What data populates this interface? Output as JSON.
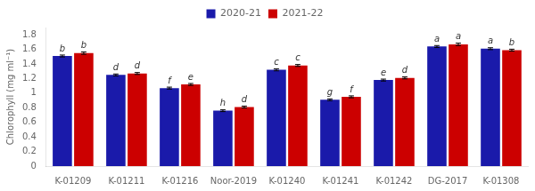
{
  "chart_data": {
    "type": "bar",
    "categories": [
      "K-01209",
      "K-01211",
      "K-01216",
      "Noor-2019",
      "K-01240",
      "K-01241",
      "K-01242",
      "DG-2017",
      "K-01308"
    ],
    "series": [
      {
        "name": "2020-21",
        "color": "#1a1aaa",
        "values": [
          1.51,
          1.25,
          1.07,
          0.76,
          1.32,
          0.91,
          1.18,
          1.64,
          1.61
        ],
        "errors": [
          0.013,
          0.013,
          0.013,
          0.012,
          0.013,
          0.012,
          0.013,
          0.013,
          0.013
        ],
        "annotations": [
          "b",
          "d",
          "f",
          "h",
          "c",
          "g",
          "e",
          "a",
          "a"
        ]
      },
      {
        "name": "2021-22",
        "color": "#cc0000",
        "values": [
          1.55,
          1.27,
          1.12,
          0.81,
          1.38,
          0.95,
          1.21,
          1.67,
          1.59
        ],
        "errors": [
          0.016,
          0.013,
          0.013,
          0.013,
          0.013,
          0.013,
          0.013,
          0.016,
          0.013
        ],
        "annotations": [
          "b",
          "d",
          "e",
          "d",
          "c",
          "f",
          "d",
          "a",
          "b"
        ]
      }
    ],
    "ylabel": "Chlorophyll (mg ml⁻¹)",
    "ylim": [
      0,
      1.9
    ],
    "yticks": [
      0,
      0.2,
      0.4,
      0.6,
      0.8,
      1,
      1.2,
      1.4,
      1.6,
      1.8
    ],
    "grid": false,
    "legend": "top"
  }
}
